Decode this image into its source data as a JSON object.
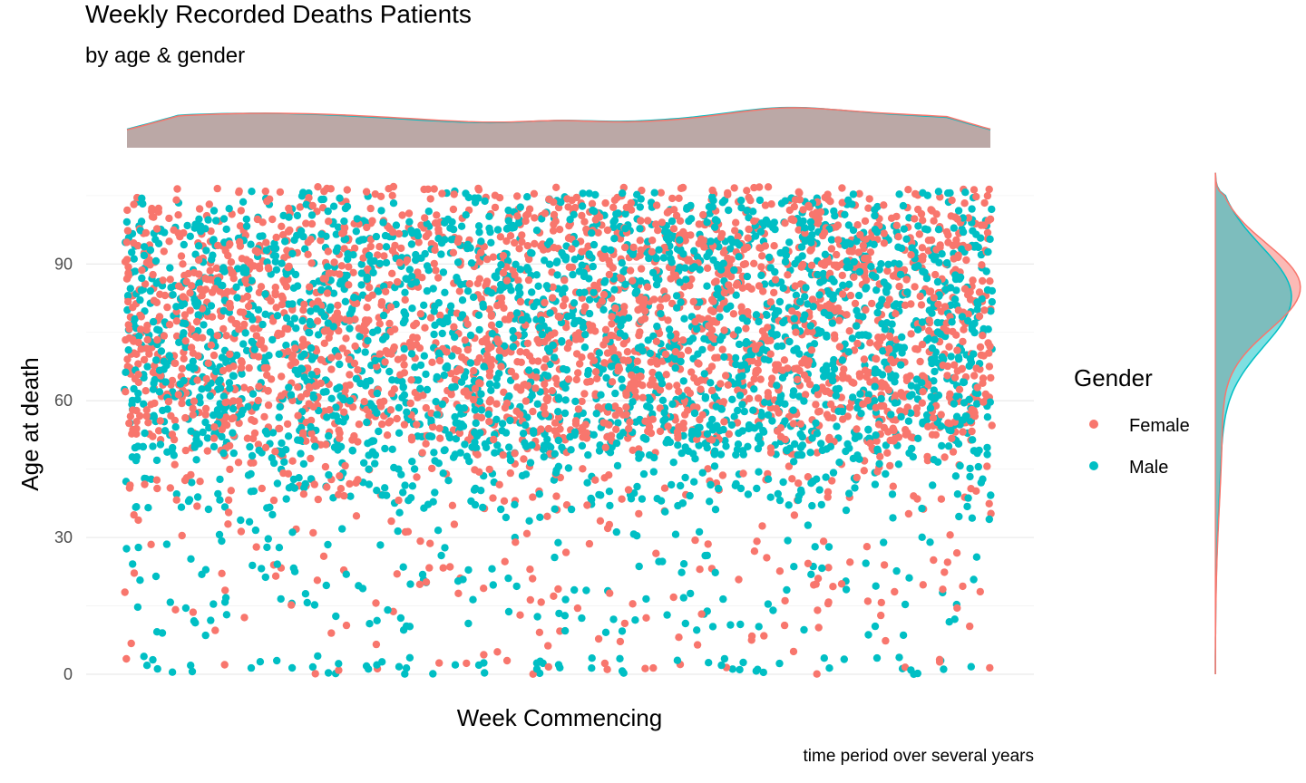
{
  "chart_data": {
    "type": "scatter",
    "title": "Weekly Recorded Deaths Patients",
    "subtitle": "by age & gender",
    "xlabel": "Week Commencing",
    "ylabel": "Age at death",
    "caption": "time period over several years",
    "ylim": [
      -2,
      110
    ],
    "yticks": [
      0,
      30,
      60,
      90
    ],
    "x_tick_labels": "none",
    "grid": "horizontal only",
    "legend": {
      "title": "Gender",
      "position": "right",
      "entries": [
        "Female",
        "Male"
      ]
    },
    "marginal_density": {
      "top": "x density by gender",
      "right": "age density by gender"
    },
    "series": [
      {
        "name": "Female",
        "color": "#F8766D",
        "age_distribution_summary": "dense band between roughly 50 and 102, sparse points down to 0, max about 109",
        "density_mode_age": 85
      },
      {
        "name": "Male",
        "color": "#00BFC4",
        "age_distribution_summary": "dense band between roughly 45 and 100, sparse points down to 0, max about 107",
        "density_mode_age": 83
      }
    ],
    "overlap_color": "#BBA8A6"
  }
}
